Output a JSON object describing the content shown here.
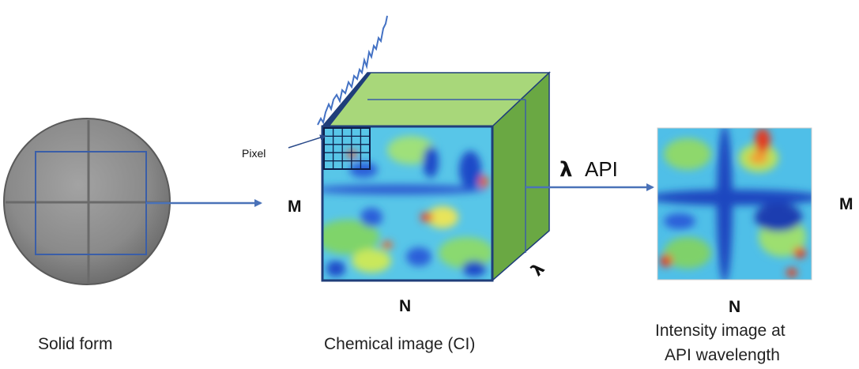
{
  "labels": {
    "pixel": "Pixel",
    "m_left": "M",
    "n_cube": "N",
    "lambda_depth": "λ",
    "lambda_symbol": "λ",
    "api": "API",
    "m_right": "M",
    "n_right": "N"
  },
  "captions": {
    "solid_form": "Solid form",
    "chemical_image": "Chemical image (CI)",
    "intensity_line1": "Intensity image at",
    "intensity_line2": "API wavelength"
  },
  "colors": {
    "arrow": "#4a72b8",
    "cube_front_border": "#1f3e7a",
    "cube_top": "#a8d77a",
    "cube_side": "#6aa843",
    "tablet": "#8c8c8c",
    "spectrum": "#4472c4"
  }
}
